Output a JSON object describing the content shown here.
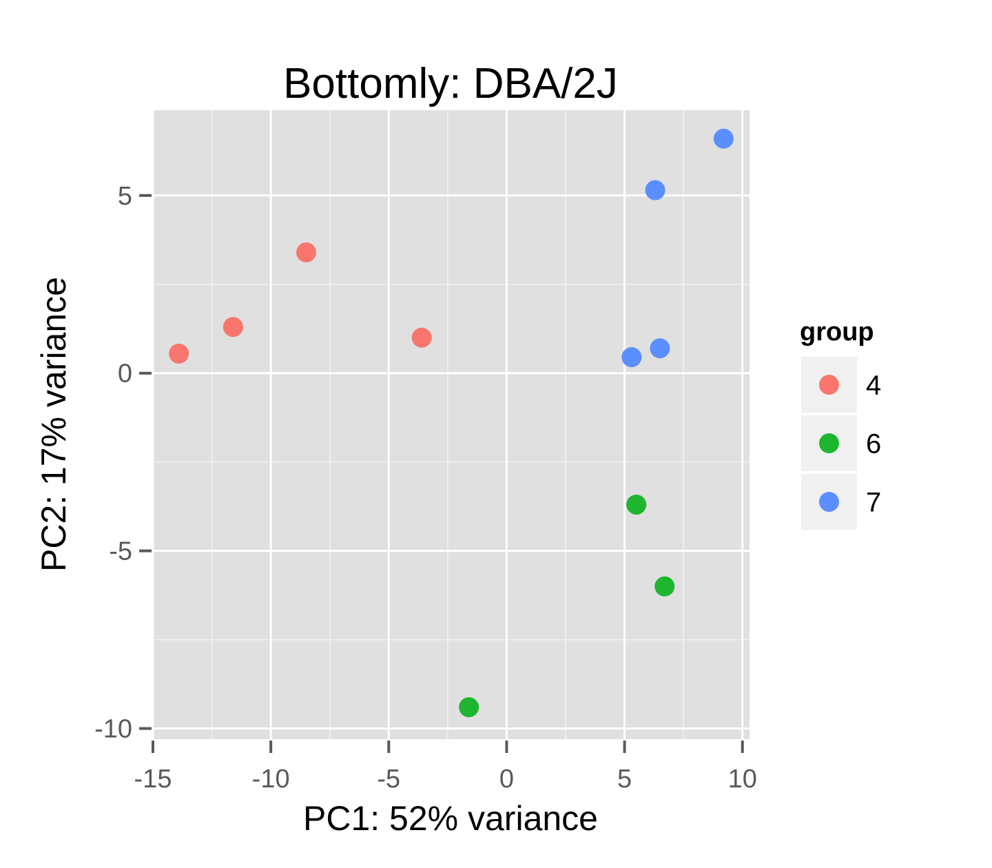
{
  "chart_data": {
    "type": "scatter",
    "title": "Bottomly: DBA/2J",
    "xlabel": "PC1: 52% variance",
    "ylabel": "PC2: 17% variance",
    "xlim": [
      -15,
      10.3
    ],
    "ylim": [
      -10.3,
      7.4
    ],
    "x_ticks": [
      -15,
      -10,
      -5,
      0,
      5,
      10
    ],
    "y_ticks": [
      -10,
      -5,
      0,
      5
    ],
    "x_tick_labels": [
      "-15",
      "-10",
      "-5",
      "0",
      "5",
      "10"
    ],
    "y_tick_labels": [
      "-10",
      "-5",
      "0",
      "5"
    ],
    "grid": true,
    "legend_position": "right",
    "legend_title": "group",
    "series": [
      {
        "name": "4",
        "color": "#F8766D",
        "points": [
          {
            "x": -13.9,
            "y": 0.55
          },
          {
            "x": -11.6,
            "y": 1.3
          },
          {
            "x": -8.5,
            "y": 3.4
          },
          {
            "x": -3.6,
            "y": 1.0
          }
        ]
      },
      {
        "name": "6",
        "color": "#1EB62E",
        "points": [
          {
            "x": -1.6,
            "y": -9.4
          },
          {
            "x": 5.5,
            "y": -3.7
          },
          {
            "x": 6.7,
            "y": -6.0
          }
        ]
      },
      {
        "name": "7",
        "color": "#5B8EFF",
        "points": [
          {
            "x": 9.2,
            "y": 6.6
          },
          {
            "x": 6.3,
            "y": 5.15
          },
          {
            "x": 6.5,
            "y": 0.7
          },
          {
            "x": 5.3,
            "y": 0.45
          }
        ]
      }
    ]
  }
}
